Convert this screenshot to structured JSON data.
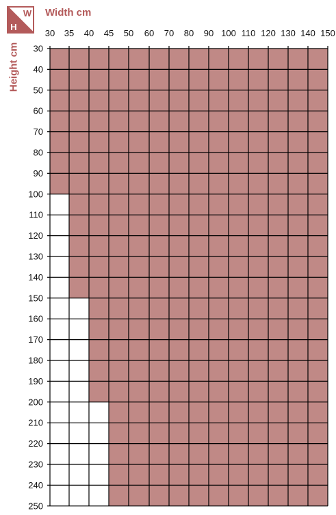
{
  "colors": {
    "accent": "#b35a5a",
    "available_fill": "#c08986",
    "unavailable_fill": "#ffffff",
    "grid_line": "#000000"
  },
  "badge": {
    "top_letter": "W",
    "bottom_letter": "H"
  },
  "width_title": "Width cm",
  "height_title": "Height cm",
  "widths": [
    30,
    35,
    40,
    45,
    50,
    60,
    70,
    80,
    90,
    100,
    110,
    120,
    130,
    140,
    150
  ],
  "heights": [
    30,
    40,
    50,
    60,
    70,
    80,
    90,
    100,
    110,
    120,
    130,
    140,
    150,
    160,
    170,
    180,
    190,
    200,
    210,
    220,
    230,
    240,
    250
  ],
  "availability_rule": [
    {
      "height_from": 30,
      "height_to": 100,
      "min_width": 30
    },
    {
      "height_from": 100,
      "height_to": 150,
      "min_width": 35
    },
    {
      "height_from": 150,
      "height_to": 200,
      "min_width": 40
    },
    {
      "height_from": 200,
      "height_to": 250,
      "min_width": 45
    }
  ]
}
